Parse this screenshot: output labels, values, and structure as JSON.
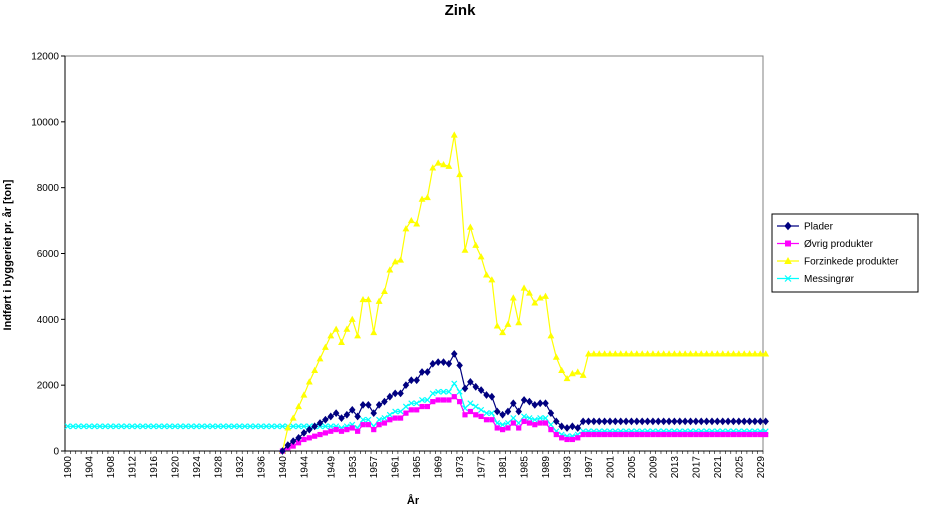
{
  "chart_data": {
    "type": "line",
    "title": "Zink",
    "xlabel": "År",
    "ylabel": "Indført i byggeriet pr. år [ton]",
    "ylim": [
      0,
      12000
    ],
    "yticks": [
      0,
      2000,
      4000,
      6000,
      8000,
      10000,
      12000
    ],
    "xlim": [
      1900,
      2030
    ],
    "grid": false,
    "legend": "right",
    "xtick_labels": [
      "1900",
      "1904",
      "1908",
      "1912",
      "1916",
      "1920",
      "1924",
      "1928",
      "1932",
      "1936",
      "1940",
      "1944",
      "1949",
      "1953",
      "1957",
      "1961",
      "1965",
      "1969",
      "1973",
      "1977",
      "1981",
      "1985",
      "1989",
      "1993",
      "1997",
      "2001",
      "2005",
      "2009",
      "2013",
      "2017",
      "2021",
      "2025",
      "2029"
    ],
    "series": [
      {
        "name": "Plader",
        "color": "#000080",
        "marker": "diamond",
        "x": [
          1940,
          1941,
          1942,
          1943,
          1944,
          1945,
          1946,
          1947,
          1948,
          1949,
          1950,
          1951,
          1952,
          1953,
          1954,
          1955,
          1956,
          1957,
          1958,
          1959,
          1960,
          1961,
          1962,
          1963,
          1964,
          1965,
          1966,
          1967,
          1968,
          1969,
          1970,
          1971,
          1972,
          1973,
          1974,
          1975,
          1976,
          1977,
          1978,
          1979,
          1980,
          1981,
          1982,
          1983,
          1984,
          1985,
          1986,
          1987,
          1988,
          1989,
          1990,
          1991,
          1992,
          1993,
          1994,
          1995,
          1996,
          1997,
          2030
        ],
        "y": [
          0,
          180,
          300,
          400,
          550,
          650,
          750,
          850,
          950,
          1050,
          1150,
          1000,
          1100,
          1250,
          1050,
          1400,
          1400,
          1150,
          1400,
          1500,
          1650,
          1750,
          1750,
          2000,
          2150,
          2150,
          2400,
          2400,
          2650,
          2700,
          2700,
          2650,
          2950,
          2600,
          1900,
          2100,
          1950,
          1850,
          1700,
          1650,
          1200,
          1100,
          1200,
          1450,
          1200,
          1550,
          1500,
          1400,
          1450,
          1450,
          1150,
          900,
          750,
          700,
          750,
          700,
          900,
          900,
          900
        ]
      },
      {
        "name": "Øvrig produkter",
        "color": "#FF00FF",
        "marker": "square",
        "x": [
          1940,
          1941,
          1942,
          1943,
          1944,
          1945,
          1946,
          1947,
          1948,
          1949,
          1950,
          1951,
          1952,
          1953,
          1954,
          1955,
          1956,
          1957,
          1958,
          1959,
          1960,
          1961,
          1962,
          1963,
          1964,
          1965,
          1966,
          1967,
          1968,
          1969,
          1970,
          1971,
          1972,
          1973,
          1974,
          1975,
          1976,
          1977,
          1978,
          1979,
          1980,
          1981,
          1982,
          1983,
          1984,
          1985,
          1986,
          1987,
          1988,
          1989,
          1990,
          1991,
          1992,
          1993,
          1994,
          1995,
          1996,
          1997,
          2030
        ],
        "y": [
          0,
          100,
          150,
          250,
          350,
          400,
          450,
          500,
          550,
          600,
          650,
          600,
          650,
          700,
          600,
          800,
          800,
          650,
          800,
          850,
          950,
          1000,
          1000,
          1150,
          1250,
          1250,
          1350,
          1350,
          1500,
          1550,
          1550,
          1550,
          1650,
          1500,
          1100,
          1200,
          1100,
          1050,
          950,
          950,
          700,
          650,
          700,
          850,
          700,
          900,
          850,
          800,
          850,
          850,
          650,
          500,
          400,
          350,
          350,
          400,
          500,
          500,
          500
        ]
      },
      {
        "name": "Forzinkede produkter",
        "color": "#FFFF00",
        "marker": "triangle",
        "x": [
          1940,
          1941,
          1942,
          1943,
          1944,
          1945,
          1946,
          1947,
          1948,
          1949,
          1950,
          1951,
          1952,
          1953,
          1954,
          1955,
          1956,
          1957,
          1958,
          1959,
          1960,
          1961,
          1962,
          1963,
          1964,
          1965,
          1966,
          1967,
          1968,
          1969,
          1970,
          1971,
          1972,
          1973,
          1974,
          1975,
          1976,
          1977,
          1978,
          1979,
          1980,
          1981,
          1982,
          1983,
          1984,
          1985,
          1986,
          1987,
          1988,
          1989,
          1990,
          1991,
          1992,
          1993,
          1994,
          1995,
          1996,
          1997,
          2030
        ],
        "y": [
          0,
          700,
          1000,
          1350,
          1700,
          2100,
          2450,
          2800,
          3150,
          3500,
          3700,
          3300,
          3700,
          4000,
          3500,
          4600,
          4600,
          3600,
          4550,
          4850,
          5500,
          5750,
          5800,
          6750,
          7000,
          6900,
          7650,
          7700,
          8600,
          8750,
          8700,
          8650,
          9600,
          8400,
          6100,
          6800,
          6250,
          5900,
          5350,
          5200,
          3800,
          3600,
          3850,
          4650,
          3900,
          4950,
          4800,
          4500,
          4650,
          4700,
          3500,
          2850,
          2450,
          2200,
          2350,
          2400,
          2300,
          2950,
          2950
        ]
      },
      {
        "name": "Messingrør",
        "color": "#00FFFF",
        "marker": "x",
        "x": [
          1900,
          1901,
          1902,
          1903,
          1904,
          1905,
          1906,
          1907,
          1908,
          1909,
          1910,
          1911,
          1912,
          1913,
          1914,
          1915,
          1916,
          1917,
          1918,
          1919,
          1920,
          1921,
          1922,
          1923,
          1924,
          1925,
          1926,
          1927,
          1928,
          1929,
          1930,
          1931,
          1932,
          1933,
          1934,
          1935,
          1936,
          1937,
          1938,
          1939,
          1940,
          1941,
          1942,
          1943,
          1944,
          1945,
          1946,
          1947,
          1948,
          1949,
          1950,
          1951,
          1952,
          1953,
          1954,
          1955,
          1956,
          1957,
          1958,
          1959,
          1960,
          1961,
          1962,
          1963,
          1964,
          1965,
          1966,
          1967,
          1968,
          1969,
          1970,
          1971,
          1972,
          1973,
          1974,
          1975,
          1976,
          1977,
          1978,
          1979,
          1980,
          1981,
          1982,
          1983,
          1984,
          1985,
          1986,
          1987,
          1988,
          1989,
          1990,
          1991,
          1992,
          1993,
          1994,
          1995,
          1996,
          1997,
          2030
        ],
        "y": [
          750,
          750,
          750,
          750,
          750,
          750,
          750,
          750,
          750,
          750,
          750,
          750,
          750,
          750,
          750,
          750,
          750,
          750,
          750,
          750,
          750,
          750,
          750,
          750,
          750,
          750,
          750,
          750,
          750,
          750,
          750,
          750,
          750,
          750,
          750,
          750,
          750,
          750,
          750,
          750,
          750,
          750,
          750,
          750,
          750,
          750,
          750,
          750,
          750,
          750,
          750,
          700,
          750,
          800,
          700,
          950,
          950,
          750,
          950,
          1000,
          1100,
          1200,
          1200,
          1350,
          1450,
          1450,
          1550,
          1550,
          1750,
          1800,
          1800,
          1800,
          2050,
          1800,
          1300,
          1450,
          1350,
          1250,
          1150,
          1150,
          850,
          800,
          850,
          1000,
          850,
          1050,
          1000,
          950,
          1000,
          1000,
          800,
          600,
          500,
          450,
          450,
          500,
          600,
          600,
          600
        ]
      }
    ]
  }
}
